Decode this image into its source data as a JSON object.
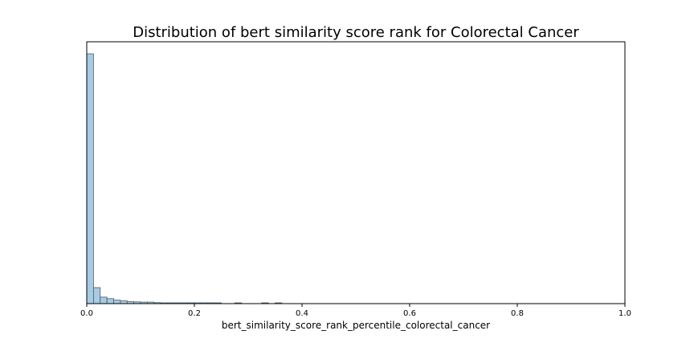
{
  "chart_data": {
    "type": "bar",
    "subtype": "histogram",
    "title": "Distribution of bert similarity score rank for Colorectal Cancer",
    "xlabel": "bert_similarity_score_rank_percentile_colorectal_cancer",
    "ylabel": "",
    "xlim": [
      0.0,
      1.0
    ],
    "y_ticks_visible": false,
    "x_ticks": [
      "0.0",
      "0.2",
      "0.4",
      "0.6",
      "0.8",
      "1.0"
    ],
    "grid": false,
    "legend": "none",
    "bar_color": "#a6cbe3",
    "edge_color": "#4a5a66",
    "bin_width": 0.0125,
    "bins": [
      {
        "x": 0.00625,
        "value": 1.0
      },
      {
        "x": 0.01875,
        "value": 0.064
      },
      {
        "x": 0.03125,
        "value": 0.026
      },
      {
        "x": 0.04375,
        "value": 0.02
      },
      {
        "x": 0.05625,
        "value": 0.014
      },
      {
        "x": 0.06875,
        "value": 0.011
      },
      {
        "x": 0.08125,
        "value": 0.008
      },
      {
        "x": 0.09375,
        "value": 0.007
      },
      {
        "x": 0.10625,
        "value": 0.006
      },
      {
        "x": 0.11875,
        "value": 0.006
      },
      {
        "x": 0.13125,
        "value": 0.004
      },
      {
        "x": 0.14375,
        "value": 0.003
      },
      {
        "x": 0.15625,
        "value": 0.003
      },
      {
        "x": 0.16875,
        "value": 0.003
      },
      {
        "x": 0.18125,
        "value": 0.002
      },
      {
        "x": 0.19375,
        "value": 0.002
      },
      {
        "x": 0.20625,
        "value": 0.002
      },
      {
        "x": 0.21875,
        "value": 0.002
      },
      {
        "x": 0.23125,
        "value": 0.002
      },
      {
        "x": 0.24375,
        "value": 0.002
      },
      {
        "x": 0.28125,
        "value": 0.002
      },
      {
        "x": 0.33125,
        "value": 0.002
      },
      {
        "x": 0.35625,
        "value": 0.002
      }
    ]
  }
}
